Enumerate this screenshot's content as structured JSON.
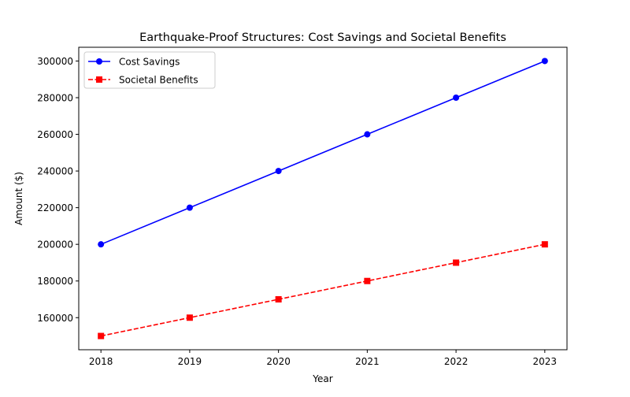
{
  "chart_data": {
    "type": "line",
    "title": "Earthquake-Proof Structures: Cost Savings and Societal Benefits",
    "xlabel": "Year",
    "ylabel": "Amount ($)",
    "x": [
      2018,
      2019,
      2020,
      2021,
      2022,
      2023
    ],
    "xlim": [
      2017.75,
      2023.25
    ],
    "ylim": [
      142500,
      307500
    ],
    "yticks": [
      160000,
      180000,
      200000,
      220000,
      240000,
      260000,
      280000,
      300000
    ],
    "grid": false,
    "legend": "upper-left",
    "series": [
      {
        "name": "Cost Savings",
        "values": [
          200000,
          220000,
          240000,
          260000,
          280000,
          300000
        ],
        "color": "#0000ff",
        "marker": "circle",
        "linestyle": "solid"
      },
      {
        "name": "Societal Benefits",
        "values": [
          150000,
          160000,
          170000,
          180000,
          190000,
          200000
        ],
        "color": "#ff0000",
        "marker": "square",
        "linestyle": "dashed"
      }
    ]
  }
}
